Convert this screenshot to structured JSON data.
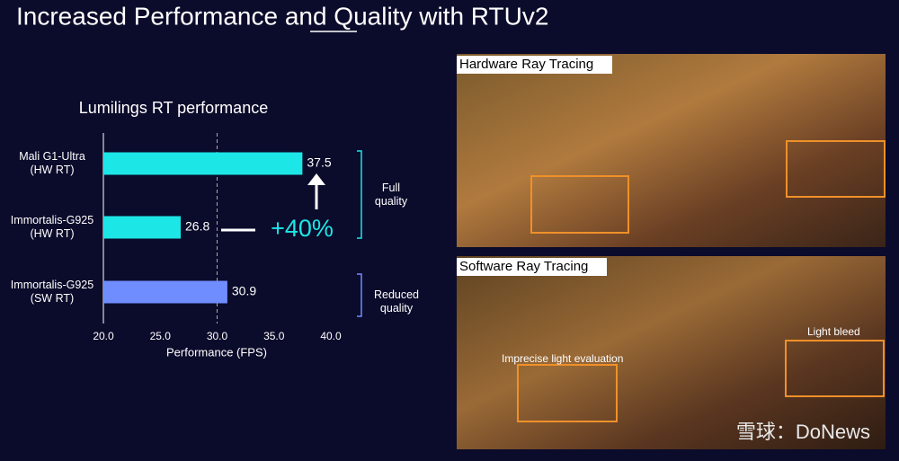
{
  "slide": {
    "title": "Increased Performance and Quality with RTUv2",
    "watermark": "雪球：DoNews"
  },
  "images": [
    {
      "label": "Hardware Ray Tracing"
    },
    {
      "label": "Software Ray Tracing",
      "callouts": [
        "Imprecise light evaluation",
        "Light bleed"
      ]
    }
  ],
  "chart_data": {
    "type": "hbar",
    "title": "Lumilings RT performance",
    "categories": [
      "Mali G1-Ultra\n(HW RT)",
      "Immortalis-G925\n(HW RT)",
      "Immortalis-G925\n(SW RT)"
    ],
    "values": [
      37.5,
      26.8,
      30.9
    ],
    "colors": [
      "#1de6e6",
      "#1de6e6",
      "#6f8dff"
    ],
    "x_label": "Performance (FPS)",
    "xlim": [
      20,
      40
    ],
    "xticks": [
      {
        "value": 20,
        "label": "20.0"
      },
      {
        "value": 25,
        "label": "25.0"
      },
      {
        "value": 30,
        "label": "30.0"
      },
      {
        "value": 35,
        "label": "35.0"
      },
      {
        "value": 40,
        "label": "40.0"
      }
    ],
    "reference_line": 30,
    "annotation": "+40%",
    "groups": [
      "Full\nquality",
      "Reduced\nquality"
    ]
  }
}
